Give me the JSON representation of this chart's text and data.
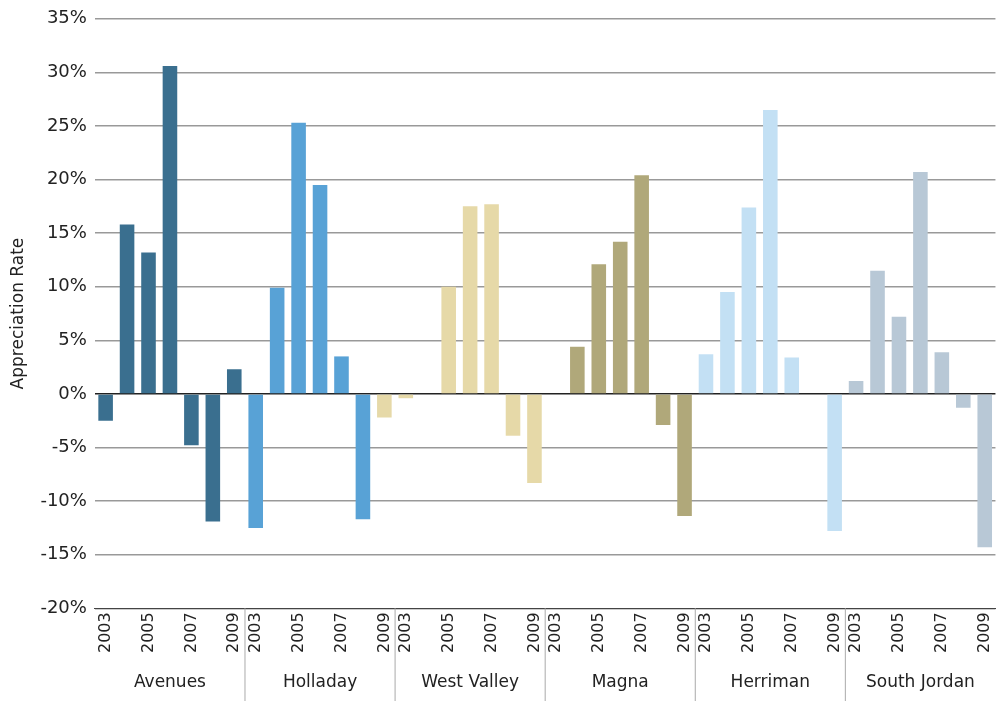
{
  "chart_data": {
    "type": "bar",
    "ylabel": "Appreciation Rate",
    "categories": [
      "2003",
      null,
      "2005",
      null,
      "2007",
      null,
      "2009",
      "2003",
      null,
      "2005",
      null,
      "2007",
      null,
      "2009",
      "2003",
      null,
      "2005",
      null,
      "2007",
      null,
      "2009",
      "2003",
      null,
      "2005",
      null,
      "2007",
      null,
      "2009",
      "2003",
      null,
      "2005",
      null,
      "2007",
      null,
      "2009",
      "2003",
      null,
      "2005",
      null,
      "2007",
      null,
      "2009"
    ],
    "values": [
      -2.5,
      15.8,
      13.2,
      30.6,
      -4.8,
      -11.9,
      2.3,
      -12.5,
      9.9,
      25.3,
      19.5,
      3.5,
      -11.7,
      -2.2,
      -0.4,
      0,
      10.0,
      17.5,
      17.7,
      -3.9,
      -8.3,
      0,
      4.4,
      12.1,
      14.2,
      20.4,
      -2.9,
      -11.4,
      3.7,
      9.5,
      17.4,
      26.5,
      3.4,
      0,
      -12.8,
      1.2,
      11.5,
      7.2,
      20.7,
      3.9,
      -1.3,
      -14.3
    ],
    "colors": [
      "#3a6f8f",
      "#3a6f8f",
      "#3a6f8f",
      "#3a6f8f",
      "#3a6f8f",
      "#3a6f8f",
      "#3a6f8f",
      "#58a2d6",
      "#58a2d6",
      "#58a2d6",
      "#58a2d6",
      "#58a2d6",
      "#58a2d6",
      "#e6d9a8",
      "#e6d9a8",
      "#e6d9a8",
      "#e6d9a8",
      "#e6d9a8",
      "#e6d9a8",
      "#e6d9a8",
      "#e6d9a8",
      "#b0a87a",
      "#b0a87a",
      "#b0a87a",
      "#b0a87a",
      "#b0a87a",
      "#b0a87a",
      "#b0a87a",
      "#c3e0f4",
      "#c3e0f4",
      "#c3e0f4",
      "#c3e0f4",
      "#c3e0f4",
      "#c3e0f4",
      "#c3e0f4",
      "#b8c8d6",
      "#b8c8d6",
      "#b8c8d6",
      "#b8c8d6",
      "#b8c8d6",
      "#b8c8d6",
      "#b8c8d6"
    ],
    "ylim": [
      -20,
      35
    ],
    "yticks": [
      {
        "value": -20,
        "label": "-20%"
      },
      {
        "value": -15,
        "label": "-15%"
      },
      {
        "value": -10,
        "label": "-10%"
      },
      {
        "value": -5,
        "label": "-5%"
      },
      {
        "value": 0,
        "label": "0%"
      },
      {
        "value": 5,
        "label": "5%"
      },
      {
        "value": 10,
        "label": "10%"
      },
      {
        "value": 15,
        "label": "15%"
      },
      {
        "value": 20,
        "label": "20%"
      },
      {
        "value": 25,
        "label": "25%"
      },
      {
        "value": 30,
        "label": "30%"
      },
      {
        "value": 35,
        "label": "35%"
      }
    ],
    "grid": "y",
    "legend": false,
    "annotations": [
      "Avenues",
      "Holladay",
      "West Valley",
      "Magna",
      "Herriman",
      "South Jordan"
    ]
  }
}
